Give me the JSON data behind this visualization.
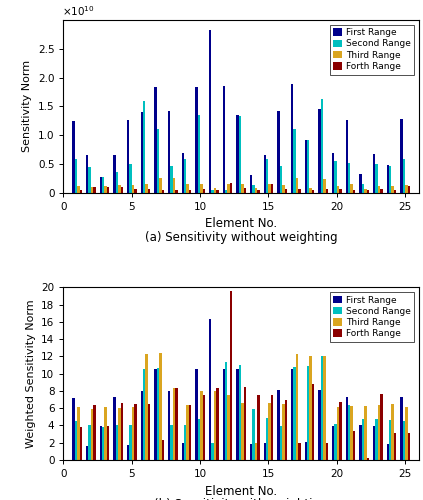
{
  "title_a": "(a) Sensitivity without weighting",
  "title_b": "(b) Sensitivity with weighting",
  "ylabel_a": "Sensitivity Norm",
  "ylabel_b": "Weighted Sensitivity Norm",
  "xlabel": "Element No.",
  "legend_labels": [
    "First Range",
    "Second Range",
    "Third Range",
    "Forth Range"
  ],
  "bar_colors": [
    "#00008B",
    "#00BFBF",
    "#DAA520",
    "#8B0000"
  ],
  "elements": [
    1,
    2,
    3,
    4,
    5,
    6,
    7,
    8,
    9,
    10,
    11,
    12,
    13,
    14,
    15,
    16,
    17,
    18,
    19,
    20,
    21,
    22,
    23,
    24,
    25
  ],
  "data_a": {
    "first": [
      1.25,
      0.65,
      0.27,
      0.65,
      1.27,
      1.4,
      1.83,
      1.42,
      0.68,
      1.84,
      2.82,
      1.86,
      1.34,
      0.31,
      0.66,
      1.42,
      1.88,
      0.91,
      1.46,
      0.68,
      1.27,
      0.32,
      0.67,
      0.48,
      1.28
    ],
    "second": [
      0.59,
      0.45,
      0.27,
      0.35,
      0.5,
      1.6,
      1.1,
      0.46,
      0.59,
      1.35,
      0.04,
      0.04,
      1.33,
      0.13,
      0.59,
      0.46,
      1.1,
      0.91,
      1.62,
      0.54,
      0.52,
      0.15,
      0.5,
      0.46,
      0.59
    ],
    "third": [
      0.12,
      0.1,
      0.12,
      0.13,
      0.13,
      0.14,
      0.25,
      0.25,
      0.14,
      0.14,
      0.08,
      0.15,
      0.15,
      0.08,
      0.14,
      0.13,
      0.25,
      0.08,
      0.24,
      0.12,
      0.14,
      0.07,
      0.12,
      0.12,
      0.13
    ],
    "fourth": [
      0.04,
      0.09,
      0.09,
      0.1,
      0.06,
      0.06,
      0.05,
      0.04,
      0.04,
      0.07,
      0.05,
      0.16,
      0.08,
      0.05,
      0.14,
      0.07,
      0.06,
      0.05,
      0.06,
      0.06,
      0.05,
      0.05,
      0.06,
      0.04,
      0.11
    ]
  },
  "data_b": {
    "first": [
      7.2,
      1.6,
      3.9,
      7.3,
      1.7,
      8.0,
      10.5,
      8.0,
      2.0,
      10.5,
      16.3,
      10.6,
      10.6,
      1.8,
      2.0,
      8.1,
      10.6,
      2.1,
      8.1,
      3.9,
      7.3,
      4.0,
      3.9,
      1.9,
      7.3
    ],
    "second": [
      4.5,
      4.0,
      3.8,
      4.0,
      4.1,
      10.6,
      10.7,
      4.0,
      4.0,
      4.8,
      2.0,
      11.4,
      11.0,
      5.9,
      4.9,
      3.9,
      10.8,
      10.9,
      12.1,
      4.2,
      6.4,
      4.7,
      4.8,
      4.6,
      4.5
    ],
    "third": [
      6.2,
      5.9,
      6.1,
      6.0,
      6.1,
      12.3,
      12.4,
      8.4,
      6.4,
      8.0,
      8.0,
      7.5,
      6.6,
      2.0,
      6.6,
      6.5,
      12.3,
      12.1,
      12.1,
      6.2,
      6.3,
      6.3,
      6.4,
      6.5,
      6.1
    ],
    "fourth": [
      3.8,
      6.4,
      3.9,
      6.6,
      6.5,
      6.5,
      2.3,
      8.3,
      6.4,
      7.5,
      8.3,
      19.6,
      8.5,
      7.5,
      7.5,
      6.9,
      2.0,
      8.8,
      2.0,
      6.7,
      3.4,
      0.2,
      7.7,
      3.1,
      3.1
    ]
  },
  "ylim_a": [
    0,
    3.0
  ],
  "ylim_b": [
    0,
    20
  ],
  "yticks_a": [
    0,
    0.5,
    1.0,
    1.5,
    2.0,
    2.5
  ],
  "yticks_b": [
    0,
    2,
    4,
    6,
    8,
    10,
    12,
    14,
    16,
    18,
    20
  ],
  "xticks": [
    0,
    5,
    10,
    15,
    20,
    25
  ]
}
